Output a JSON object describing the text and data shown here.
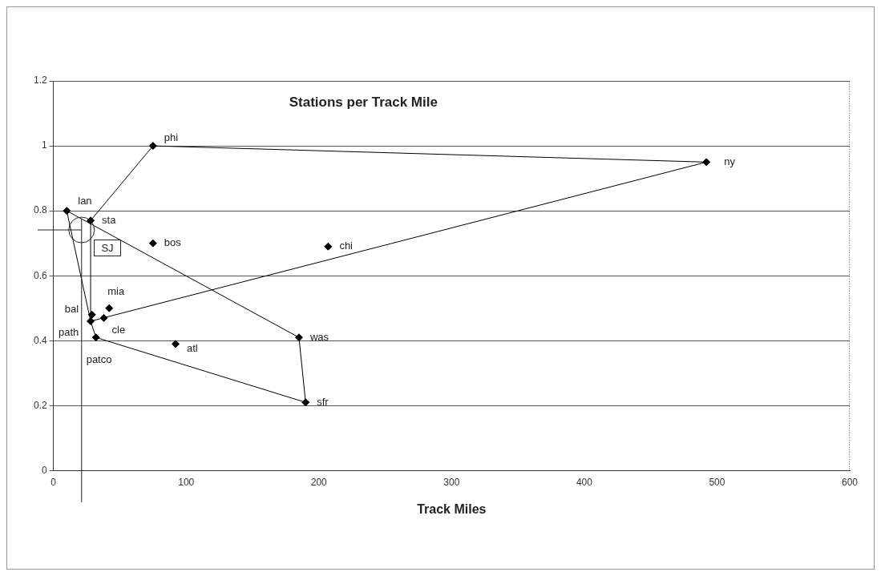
{
  "chart_data": {
    "type": "scatter",
    "title": "Stations per Track Mile",
    "xlabel": "Track Miles",
    "xlim": [
      0,
      600
    ],
    "xticks": [
      0,
      100,
      200,
      300,
      400,
      500,
      600
    ],
    "ylim": [
      0,
      1.2
    ],
    "yticks": [
      0,
      0.2,
      0.4,
      0.6,
      0.8,
      1,
      1.2
    ],
    "grid": "y",
    "legend": false,
    "marker": "diamond",
    "series": [
      {
        "color": "#000000",
        "x": [
          75,
          492,
          10,
          28,
          75,
          207,
          42,
          29,
          38,
          28,
          32,
          92,
          185,
          190
        ],
        "values": [
          1.0,
          0.95,
          0.8,
          0.77,
          0.7,
          0.69,
          0.5,
          0.48,
          0.47,
          0.46,
          0.41,
          0.39,
          0.41,
          0.21
        ]
      },
      {
        "type": "line",
        "marker": "none",
        "color": "#000000",
        "x": [
          28,
          28,
          75,
          492
        ],
        "values": [
          0.46,
          0.77,
          1.0,
          0.95
        ]
      },
      {
        "type": "line",
        "marker": "none",
        "color": "#000000",
        "x": [
          28,
          492
        ],
        "values": [
          0.46,
          0.95
        ]
      },
      {
        "type": "line",
        "marker": "none",
        "color": "#000000",
        "x": [
          10,
          28,
          32,
          190
        ],
        "values": [
          0.8,
          0.46,
          0.41,
          0.21
        ]
      },
      {
        "type": "line",
        "marker": "none",
        "color": "#000000",
        "x": [
          10,
          185,
          190
        ],
        "values": [
          0.8,
          0.41,
          0.21
        ]
      }
    ],
    "annotations": [
      {
        "text": "phi",
        "x": 75,
        "y": 1.0
      },
      {
        "text": "ny",
        "x": 492,
        "y": 0.95
      },
      {
        "text": "lan",
        "x": 10,
        "y": 0.8
      },
      {
        "text": "sta",
        "x": 28,
        "y": 0.77
      },
      {
        "text": "bos",
        "x": 75,
        "y": 0.7
      },
      {
        "text": "chi",
        "x": 207,
        "y": 0.69
      },
      {
        "text": "mia",
        "x": 42,
        "y": 0.5
      },
      {
        "text": "bal",
        "x": 29,
        "y": 0.48
      },
      {
        "text": "cle",
        "x": 38,
        "y": 0.47
      },
      {
        "text": "path",
        "x": 28,
        "y": 0.46
      },
      {
        "text": "patco",
        "x": 32,
        "y": 0.41
      },
      {
        "text": "atl",
        "x": 92,
        "y": 0.39
      },
      {
        "text": "was",
        "x": 185,
        "y": 0.41
      },
      {
        "text": "sfr",
        "x": 190,
        "y": 0.21
      },
      {
        "text": "SJ",
        "x": 21,
        "y": 0.74
      }
    ]
  }
}
